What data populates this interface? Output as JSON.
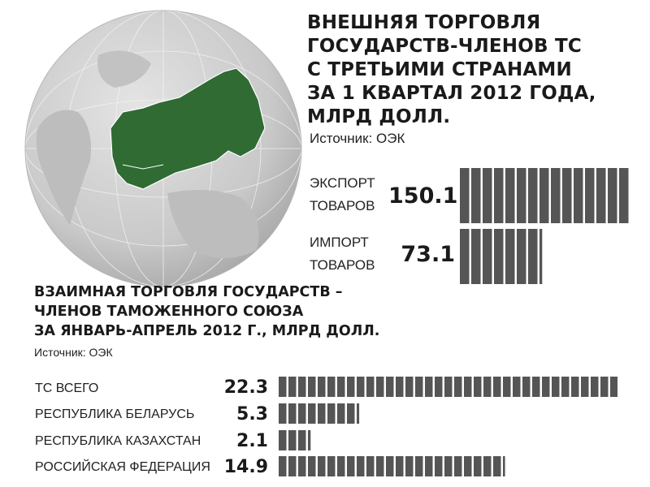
{
  "top": {
    "title_lines": [
      "ВНЕШНЯЯ ТОРГОВЛЯ",
      "ГОСУДАРСТВ-ЧЛЕНОВ ТС",
      "С ТРЕТЬИМИ СТРАНАМИ",
      "ЗА 1 КВАРТАЛ 2012 ГОДА,",
      "МЛРД ДОЛЛ."
    ],
    "source": "Источник: ОЭК"
  },
  "bottom": {
    "title_lines": [
      "ВЗАИМНАЯ ТОРГОВЛЯ ГОСУДАРСТВ –",
      "ЧЛЕНОВ ТАМОЖЕННОГО СОЮЗА",
      "ЗА ЯНВАРЬ-АПРЕЛЬ 2012 Г., МЛРД ДОЛЛ."
    ],
    "source": "Источник: ОЭК"
  },
  "colors": {
    "bar": "#555555",
    "map_land": "#2f6b33",
    "globe": "#d0d0d0"
  },
  "globe_icon": "globe-map-icon",
  "chart_data": [
    {
      "type": "bar",
      "orientation": "horizontal",
      "categories": [
        [
          "ЭКСПОРТ",
          "ТОВАРОВ"
        ],
        [
          "ИМПОРТ",
          "ТОВАРОВ"
        ]
      ],
      "values": [
        150.1,
        73.1
      ],
      "value_labels": [
        "150.1",
        "73.1"
      ]
    },
    {
      "type": "bar",
      "orientation": "horizontal",
      "categories": [
        "ТС ВСЕГО",
        "РЕСПУБЛИКА БЕЛАРУСЬ",
        "РЕСПУБЛИКА КАЗАХСТАН",
        "РОССИЙСКАЯ ФЕДЕРАЦИЯ"
      ],
      "values": [
        22.3,
        5.3,
        2.1,
        14.9
      ],
      "value_labels": [
        "22.3",
        "5.3",
        "2.1",
        "14.9"
      ]
    }
  ]
}
